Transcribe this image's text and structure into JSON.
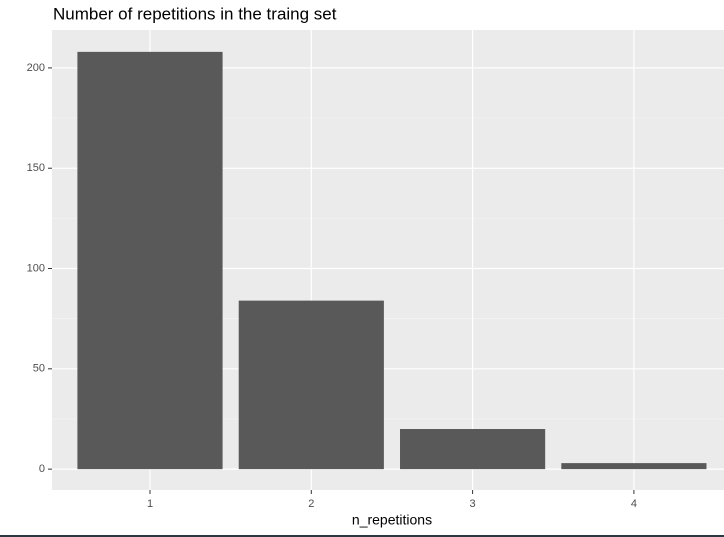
{
  "chart_data": {
    "type": "bar",
    "title": "Number of repetitions in the traing set",
    "x_label": "n_repetitions",
    "categories": [
      "1",
      "2",
      "3",
      "4"
    ],
    "values": [
      208,
      84,
      20,
      3
    ],
    "color": "#595959",
    "ylim": [
      -10.4,
      218.9
    ],
    "yticks": [
      0,
      50,
      100,
      150,
      200
    ],
    "grid": true
  }
}
